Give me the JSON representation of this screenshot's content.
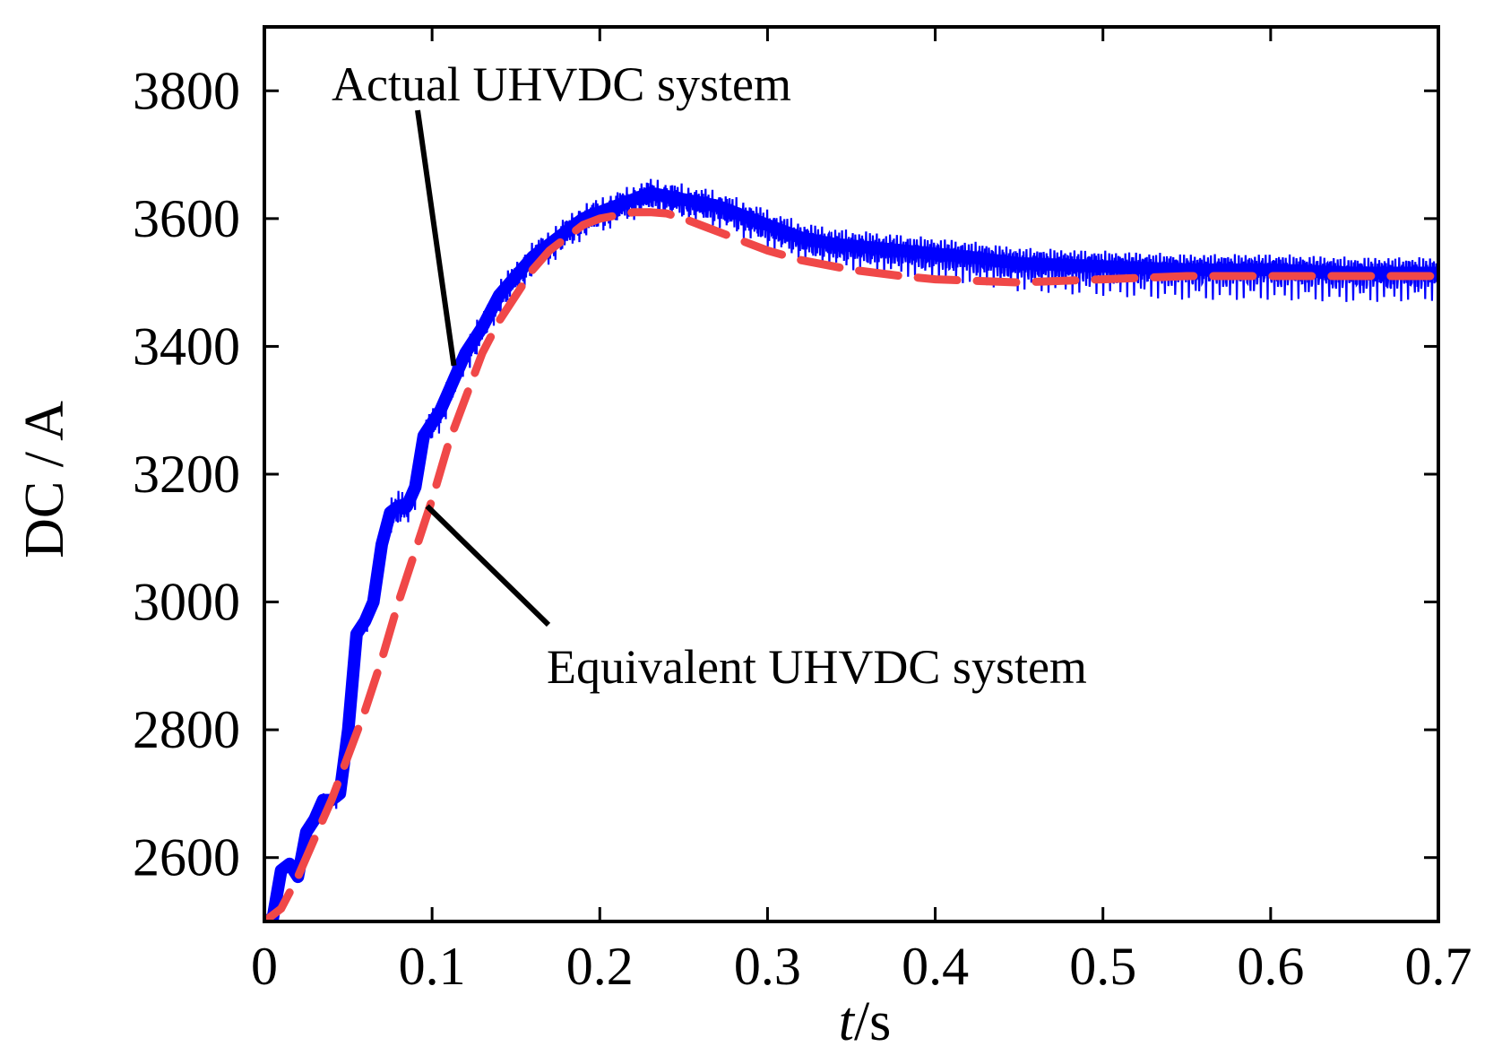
{
  "chart_data": {
    "type": "line",
    "title": "",
    "xlabel_italic": "t",
    "xlabel_unit": "/s",
    "ylabel": "DC / A",
    "xlim": [
      0,
      0.7
    ],
    "ylim": [
      2500,
      3900
    ],
    "xticks": [
      0,
      0.1,
      0.2,
      0.3,
      0.4,
      0.5,
      0.6,
      0.7
    ],
    "xtick_labels": [
      "0",
      "0.1",
      "0.2",
      "0.3",
      "0.4",
      "0.5",
      "0.6",
      "0.7"
    ],
    "yticks": [
      2600,
      2800,
      3000,
      3200,
      3400,
      3600,
      3800
    ],
    "ytick_labels": [
      "2600",
      "2800",
      "3000",
      "3200",
      "3400",
      "3600",
      "3800"
    ],
    "grid": false,
    "series": [
      {
        "name": "Actual UHVDC system",
        "color": "#0000ff",
        "style": "solid",
        "ripple_amplitude": 25,
        "x": [
          0,
          0.005,
          0.01,
          0.015,
          0.02,
          0.025,
          0.03,
          0.035,
          0.04,
          0.045,
          0.05,
          0.055,
          0.06,
          0.065,
          0.07,
          0.075,
          0.08,
          0.085,
          0.09,
          0.095,
          0.1,
          0.105,
          0.11,
          0.115,
          0.12,
          0.13,
          0.14,
          0.15,
          0.16,
          0.17,
          0.18,
          0.19,
          0.2,
          0.21,
          0.22,
          0.23,
          0.24,
          0.25,
          0.26,
          0.27,
          0.28,
          0.3,
          0.32,
          0.34,
          0.36,
          0.38,
          0.4,
          0.42,
          0.45,
          0.5,
          0.55,
          0.6,
          0.65,
          0.7
        ],
        "y": [
          2500,
          2505,
          2580,
          2590,
          2570,
          2640,
          2660,
          2690,
          2690,
          2700,
          2800,
          2950,
          2970,
          3000,
          3090,
          3140,
          3150,
          3150,
          3180,
          3260,
          3280,
          3300,
          3330,
          3360,
          3390,
          3430,
          3480,
          3510,
          3540,
          3560,
          3580,
          3600,
          3610,
          3620,
          3630,
          3640,
          3635,
          3630,
          3625,
          3620,
          3610,
          3590,
          3570,
          3560,
          3555,
          3550,
          3545,
          3540,
          3530,
          3525,
          3520,
          3520,
          3515,
          3515
        ]
      },
      {
        "name": "Equivalent UHVDC system",
        "color": "#f04848",
        "style": "dashed",
        "x": [
          0,
          0.01,
          0.02,
          0.03,
          0.04,
          0.05,
          0.06,
          0.07,
          0.08,
          0.09,
          0.1,
          0.11,
          0.12,
          0.13,
          0.14,
          0.15,
          0.16,
          0.17,
          0.18,
          0.19,
          0.2,
          0.21,
          0.22,
          0.23,
          0.24,
          0.25,
          0.26,
          0.28,
          0.3,
          0.32,
          0.35,
          0.38,
          0.4,
          0.45,
          0.5,
          0.55,
          0.6,
          0.65,
          0.7
        ],
        "y": [
          2500,
          2520,
          2570,
          2630,
          2690,
          2760,
          2830,
          2910,
          3000,
          3080,
          3160,
          3250,
          3320,
          3390,
          3440,
          3480,
          3520,
          3550,
          3570,
          3590,
          3600,
          3605,
          3610,
          3610,
          3608,
          3600,
          3590,
          3570,
          3550,
          3535,
          3520,
          3510,
          3505,
          3500,
          3505,
          3510,
          3510,
          3510,
          3510
        ]
      }
    ],
    "annotations": [
      {
        "text": "Actual UHVDC system",
        "points_to_series": "Actual UHVDC system",
        "target": [
          0.113,
          3370
        ]
      },
      {
        "text": "Equivalent UHVDC system",
        "points_to_series": "Equivalent UHVDC system",
        "target": [
          0.097,
          3150
        ]
      }
    ]
  }
}
